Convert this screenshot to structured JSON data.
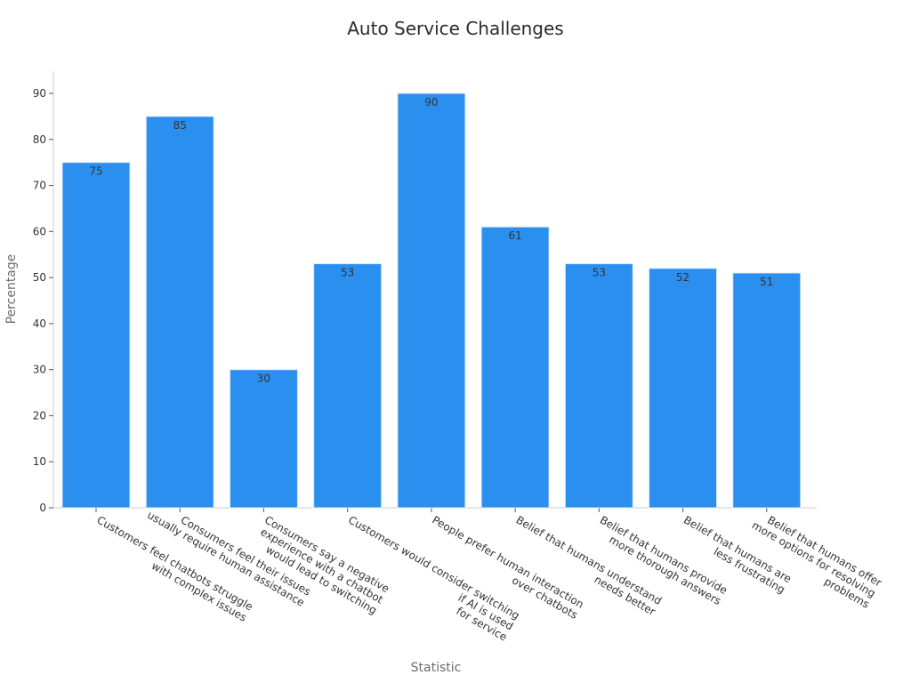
{
  "chart_data": {
    "type": "bar",
    "title": "Auto Service Challenges",
    "xlabel": "Statistic",
    "ylabel": "Percentage",
    "ylim": [
      0,
      90
    ],
    "yticks": [
      0,
      10,
      20,
      30,
      40,
      50,
      60,
      70,
      80,
      90
    ],
    "grid": false,
    "categories": [
      [
        "Customers feel chatbots struggle",
        "with complex issues"
      ],
      [
        "Consumers feel their issues",
        "usually require human assistance"
      ],
      [
        "Consumers say a negative",
        "experience with a chatbot",
        "would lead to switching"
      ],
      [
        "Customers would consider switching",
        "if AI is used",
        "for service"
      ],
      [
        "People prefer human interaction",
        "over chatbots"
      ],
      [
        "Belief that humans understand",
        "needs better"
      ],
      [
        "Belief that humans provide",
        "more thorough answers"
      ],
      [
        "Belief that humans are",
        "less frustrating"
      ],
      [
        "Belief that humans offer",
        "more options for resolving",
        "problems"
      ]
    ],
    "values": [
      75,
      85,
      30,
      53,
      90,
      61,
      53,
      52,
      51
    ],
    "bar_color": "#2b8ff0"
  }
}
